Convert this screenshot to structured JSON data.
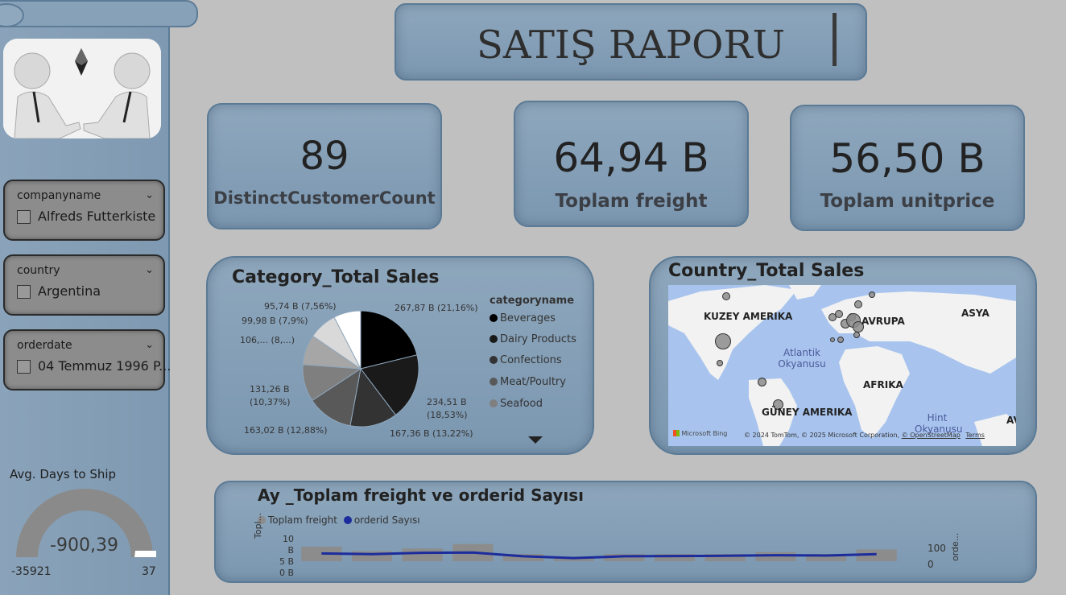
{
  "title": "SATIŞ RAPORU",
  "slicers": [
    {
      "title": "companyname",
      "value": "Alfreds Futterkiste"
    },
    {
      "title": "country",
      "value": "Argentina"
    },
    {
      "title": "orderdate",
      "value": "04 Temmuz 1996 P..."
    }
  ],
  "gauge": {
    "title": "Avg. Days to Ship",
    "value": "-900,39",
    "min": "-35921",
    "max": "37",
    "fill_fraction": 0.975
  },
  "cards": [
    {
      "value": "89",
      "label": "DistinctCustomerCount"
    },
    {
      "value": "64,94 B",
      "label": "Toplam freight"
    },
    {
      "value": "56,50 B",
      "label": "Toplam unitprice"
    }
  ],
  "category_chart": {
    "title": "Category_Total Sales",
    "legend_title": "categoryname",
    "legend": [
      {
        "name": "Beverages",
        "color": "#000000"
      },
      {
        "name": "Dairy Products",
        "color": "#1a1a1a"
      },
      {
        "name": "Confections",
        "color": "#333333"
      },
      {
        "name": "Meat/Poultry",
        "color": "#595959"
      },
      {
        "name": "Seafood",
        "color": "#7f7f7f"
      }
    ],
    "labels": {
      "l1": "267,87 B (21,16%)",
      "l2a": "234,51 B",
      "l2b": "(18,53%)",
      "l3": "167,36 B (13,22%)",
      "l4": "163,02 B (12,88%)",
      "l5a": "131,26 B",
      "l5b": "(10,37%)",
      "l6": "106,... (8,...)",
      "l7": "99,98 B (7,9%)",
      "l8": "95,74 B (7,56%)"
    }
  },
  "chart_data": {
    "type": "pie",
    "title": "Category_Total Sales",
    "values": [
      21.16,
      18.53,
      13.22,
      12.88,
      10.37,
      8.38,
      7.9,
      7.56
    ],
    "colors": [
      "#000000",
      "#1a1a1a",
      "#333333",
      "#595959",
      "#7f7f7f",
      "#a6a6a6",
      "#d9d9d9",
      "#ffffff"
    ]
  },
  "country_chart": {
    "title": "Country_Total Sales",
    "labels": {
      "north_america": "KUZEY AMERIKA",
      "europe": "AVRUPA",
      "asia": "ASYA",
      "africa": "AFRIKA",
      "south_america": "GÜNEY AMERIKA",
      "atlantic": "Atlantik Okyanusu",
      "indian": "Hint Okyanusu",
      "aus": "AVUS"
    },
    "attribution": "© 2024 TomTom, © 2025 Microsoft Corporation,",
    "osm": "© OpenStreetMap",
    "terms": "Terms",
    "bing": "Microsoft Bing"
  },
  "combo_chart": {
    "title": "Ay _Toplam freight ve orderid Sayısı",
    "legend": [
      {
        "name": "Toplam freight",
        "color": "#8c8c8c"
      },
      {
        "name": "orderid Sayısı",
        "color": "#1c2c9c"
      }
    ],
    "y_left_ticks": [
      "10 B",
      "5 B",
      "0 B"
    ],
    "y_left_label": "Topl...",
    "y_right_ticks": [
      "100",
      "0"
    ],
    "y_right_label": "orde...",
    "bars": [
      8,
      5.5,
      7,
      9.5,
      4,
      2.5,
      4,
      4,
      4,
      5,
      4,
      6.5
    ],
    "line": [
      60,
      55,
      65,
      67,
      38,
      24,
      38,
      40,
      42,
      46,
      44,
      55
    ]
  }
}
